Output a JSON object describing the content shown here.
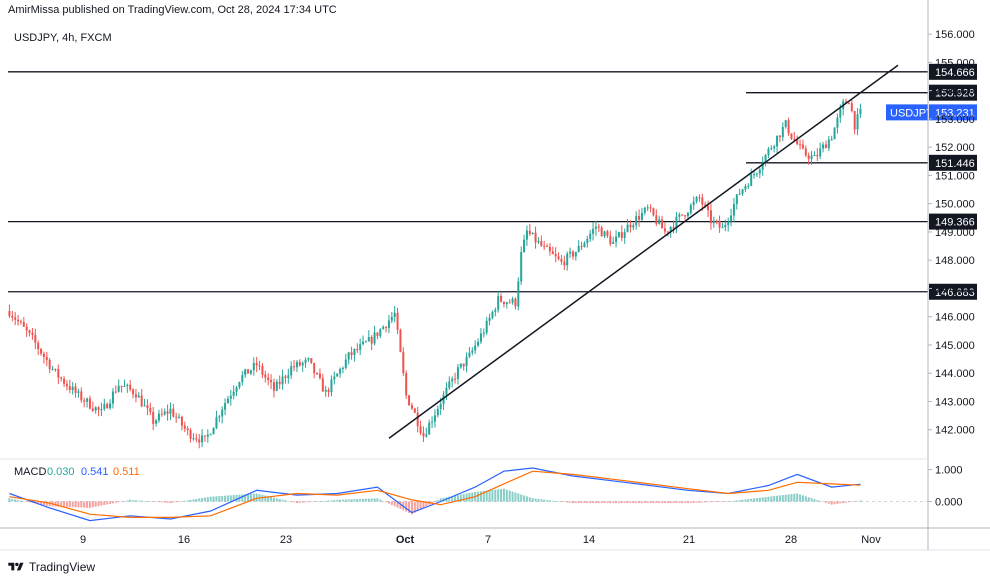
{
  "header": {
    "publisher": "AmirMissa published on TradingView.com, Oct 28, 2024 17:34 UTC"
  },
  "symbol": {
    "title": "USDJPY, 4h, FXCM"
  },
  "footer": {
    "brand": "TradingView"
  },
  "colors": {
    "up": "#26a69a",
    "down": "#ef5350",
    "line": "#131722",
    "macd": "#2962ff",
    "signal": "#ff6d00",
    "hist_up": "#b2dfdb",
    "hist_down": "#ffcdd2",
    "last": "#2962ff"
  },
  "chart_data": {
    "type": "candlestick",
    "symbol": "USDJPY",
    "timeframe": "4h",
    "price_axis": {
      "ticks": [
        156.0,
        155.0,
        154.0,
        153.0,
        152.0,
        151.0,
        150.0,
        149.0,
        148.0,
        147.0,
        146.0,
        145.0,
        144.0,
        143.0,
        142.0
      ],
      "labels": [
        "156.000",
        "155.000",
        "154.000",
        "153.000",
        "152.000",
        "151.000",
        "150.000",
        "149.000",
        "148.000",
        "147.000",
        "146.000",
        "145.000",
        "144.000",
        "143.000",
        "142.000"
      ],
      "ylim": [
        141.0,
        156.5
      ]
    },
    "x_axis": {
      "labels": [
        "9",
        "16",
        "23",
        "Oct",
        "7",
        "14",
        "21",
        "28",
        "Nov"
      ]
    },
    "horizontal_levels": [
      {
        "price": 154.666,
        "label": "154.666",
        "full": true
      },
      {
        "price": 153.928,
        "label": "153.928",
        "full": false
      },
      {
        "price": 151.446,
        "label": "151.446",
        "full": false
      },
      {
        "price": 149.366,
        "label": "149.366",
        "full": true
      },
      {
        "price": 146.883,
        "label": "146.883",
        "full": true
      }
    ],
    "last_price": {
      "label": "USDJPY",
      "value": "153.231"
    },
    "trendline": {
      "from": [
        "Sep 30",
        141.7
      ],
      "to": [
        "Nov 1",
        154.9
      ]
    },
    "path_points": [
      [
        0,
        146.2
      ],
      [
        8,
        145.2
      ],
      [
        16,
        144.0
      ],
      [
        24,
        143.2
      ],
      [
        32,
        142.6
      ],
      [
        38,
        143.6
      ],
      [
        44,
        143.3
      ],
      [
        50,
        142.3
      ],
      [
        56,
        142.7
      ],
      [
        62,
        141.9
      ],
      [
        68,
        141.6
      ],
      [
        74,
        142.8
      ],
      [
        80,
        143.8
      ],
      [
        86,
        144.3
      ],
      [
        92,
        143.4
      ],
      [
        98,
        144.2
      ],
      [
        104,
        144.4
      ],
      [
        110,
        143.3
      ],
      [
        118,
        144.6
      ],
      [
        126,
        145.2
      ],
      [
        134,
        146.1
      ],
      [
        138,
        143.2
      ],
      [
        140,
        142.8
      ],
      [
        144,
        141.8
      ],
      [
        150,
        143.0
      ],
      [
        156,
        144.1
      ],
      [
        160,
        144.6
      ],
      [
        166,
        145.7
      ],
      [
        170,
        146.6
      ],
      [
        176,
        146.5
      ],
      [
        178,
        148.2
      ],
      [
        180,
        149.0
      ],
      [
        186,
        148.4
      ],
      [
        192,
        147.9
      ],
      [
        198,
        148.4
      ],
      [
        204,
        149.2
      ],
      [
        210,
        148.6
      ],
      [
        216,
        149.3
      ],
      [
        222,
        149.8
      ],
      [
        228,
        149.0
      ],
      [
        234,
        149.6
      ],
      [
        240,
        150.2
      ],
      [
        244,
        149.4
      ],
      [
        248,
        149.1
      ],
      [
        254,
        150.4
      ],
      [
        260,
        151.2
      ],
      [
        266,
        152.2
      ],
      [
        270,
        152.8
      ],
      [
        272,
        152.4
      ],
      [
        276,
        151.8
      ],
      [
        280,
        151.6
      ],
      [
        286,
        152.4
      ],
      [
        290,
        153.5
      ],
      [
        292,
        153.7
      ],
      [
        294,
        152.8
      ],
      [
        296,
        153.2
      ]
    ],
    "macd": {
      "labels": {
        "name": "MACD",
        "hist": "0.030",
        "macd": "0.541",
        "signal": "0.511"
      },
      "axis": {
        "ticks": [
          1.0,
          0.0
        ],
        "labels": [
          "1.000",
          "0.000"
        ],
        "ylim": [
          -0.8,
          1.3
        ]
      },
      "macd_points": [
        [
          0,
          0.25
        ],
        [
          14,
          -0.2
        ],
        [
          28,
          -0.6
        ],
        [
          42,
          -0.45
        ],
        [
          56,
          -0.55
        ],
        [
          70,
          -0.3
        ],
        [
          86,
          0.35
        ],
        [
          100,
          0.2
        ],
        [
          114,
          0.25
        ],
        [
          128,
          0.45
        ],
        [
          140,
          -0.35
        ],
        [
          150,
          0.0
        ],
        [
          162,
          0.45
        ],
        [
          172,
          0.95
        ],
        [
          182,
          1.05
        ],
        [
          196,
          0.8
        ],
        [
          214,
          0.6
        ],
        [
          236,
          0.35
        ],
        [
          250,
          0.25
        ],
        [
          264,
          0.5
        ],
        [
          274,
          0.85
        ],
        [
          286,
          0.45
        ],
        [
          296,
          0.54
        ]
      ],
      "signal_points": [
        [
          0,
          0.15
        ],
        [
          14,
          -0.05
        ],
        [
          28,
          -0.4
        ],
        [
          42,
          -0.5
        ],
        [
          56,
          -0.5
        ],
        [
          70,
          -0.45
        ],
        [
          86,
          0.1
        ],
        [
          100,
          0.25
        ],
        [
          114,
          0.2
        ],
        [
          128,
          0.35
        ],
        [
          140,
          0.05
        ],
        [
          150,
          -0.1
        ],
        [
          162,
          0.15
        ],
        [
          172,
          0.55
        ],
        [
          182,
          0.95
        ],
        [
          196,
          0.85
        ],
        [
          214,
          0.65
        ],
        [
          236,
          0.4
        ],
        [
          250,
          0.25
        ],
        [
          264,
          0.35
        ],
        [
          274,
          0.6
        ],
        [
          286,
          0.55
        ],
        [
          296,
          0.51
        ]
      ]
    }
  }
}
